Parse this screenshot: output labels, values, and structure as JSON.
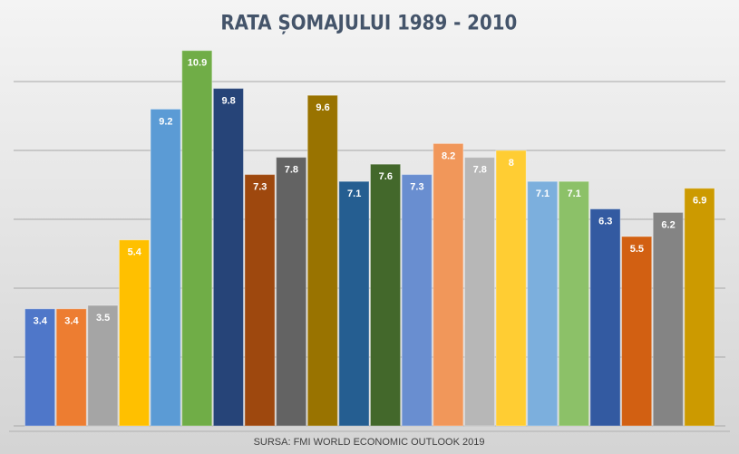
{
  "chart_data": {
    "type": "bar",
    "title": "RATA ȘOMAJULUI 1989 - 2010",
    "source": "SURSA: FMI WORLD ECONOMIC OUTLOOK 2019",
    "values": [
      3.4,
      3.4,
      3.5,
      5.4,
      9.2,
      10.9,
      9.8,
      7.3,
      7.8,
      9.6,
      7.1,
      7.6,
      7.3,
      8.2,
      7.8,
      8,
      7.1,
      7.1,
      6.3,
      5.5,
      6.2,
      6.9
    ],
    "colors": [
      "#4f77c9",
      "#ed7d31",
      "#a5a5a5",
      "#ffc000",
      "#5b9bd5",
      "#70ad47",
      "#264478",
      "#9e480e",
      "#636363",
      "#997300",
      "#255e91",
      "#43682b",
      "#698ed0",
      "#f1975a",
      "#b7b7b7",
      "#ffcd33",
      "#7cafdd",
      "#8cc168",
      "#335aa1",
      "#d26012",
      "#848484",
      "#cc9a00"
    ],
    "ylim": [
      0,
      12
    ],
    "yticks": [
      0,
      2,
      4,
      6,
      8,
      10
    ],
    "grid": true
  }
}
